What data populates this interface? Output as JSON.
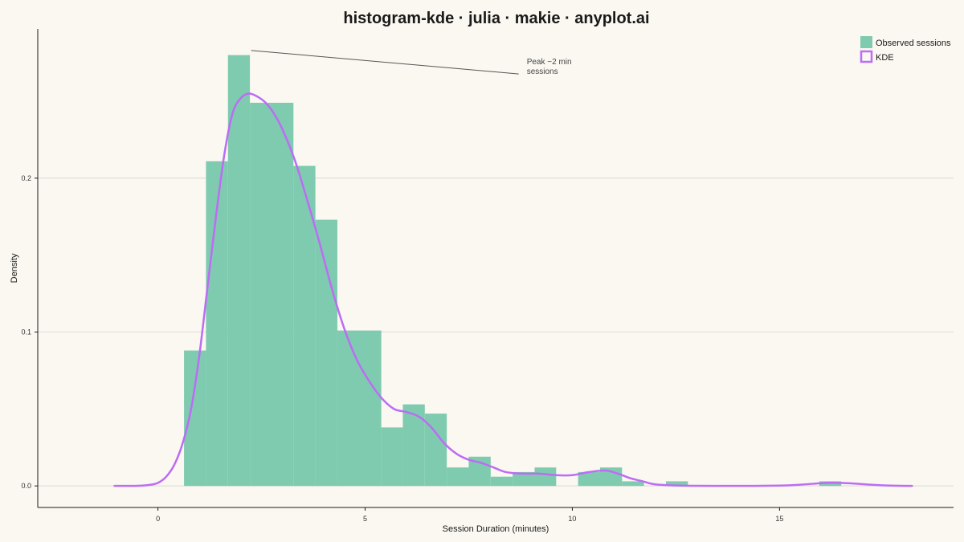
{
  "chart_data": {
    "type": "bar",
    "title": "histogram-kde · julia · makie · anyplot.ai",
    "xlabel": "Session Duration (minutes)",
    "ylabel": "Density",
    "xlim": [
      -2.9,
      19.2
    ],
    "ylim": [
      -0.014,
      0.297
    ],
    "x_ticks": [
      0,
      5,
      10,
      15
    ],
    "x_tick_labels": [
      "0",
      "5",
      "10",
      "15"
    ],
    "y_ticks": [
      0.0,
      0.1,
      0.2
    ],
    "y_tick_labels": [
      "0.0",
      "0.1",
      "0.2"
    ],
    "grid": "horizontal",
    "legend_position": "top-right",
    "series": [
      {
        "name": "Observed sessions",
        "kind": "histogram",
        "color": "#7FCBAF",
        "bins": [
          {
            "x0": 0.63,
            "x1": 1.16,
            "value": 0.088
          },
          {
            "x0": 1.16,
            "x1": 1.69,
            "value": 0.211
          },
          {
            "x0": 1.69,
            "x1": 2.22,
            "value": 0.28
          },
          {
            "x0": 2.22,
            "x1": 3.27,
            "value": 0.249
          },
          {
            "x0": 3.27,
            "x1": 3.8,
            "value": 0.208
          },
          {
            "x0": 3.8,
            "x1": 4.33,
            "value": 0.173
          },
          {
            "x0": 4.33,
            "x1": 5.39,
            "value": 0.101
          },
          {
            "x0": 5.39,
            "x1": 5.91,
            "value": 0.038
          },
          {
            "x0": 5.91,
            "x1": 6.44,
            "value": 0.053
          },
          {
            "x0": 6.44,
            "x1": 6.97,
            "value": 0.047
          },
          {
            "x0": 6.97,
            "x1": 7.5,
            "value": 0.012
          },
          {
            "x0": 7.5,
            "x1": 8.03,
            "value": 0.019
          },
          {
            "x0": 8.03,
            "x1": 8.56,
            "value": 0.006
          },
          {
            "x0": 8.56,
            "x1": 9.09,
            "value": 0.009
          },
          {
            "x0": 9.09,
            "x1": 9.61,
            "value": 0.012
          },
          {
            "x0": 10.14,
            "x1": 10.67,
            "value": 0.009
          },
          {
            "x0": 10.67,
            "x1": 11.2,
            "value": 0.012
          },
          {
            "x0": 11.2,
            "x1": 11.73,
            "value": 0.003
          },
          {
            "x0": 12.26,
            "x1": 12.79,
            "value": 0.003
          },
          {
            "x0": 15.96,
            "x1": 16.49,
            "value": 0.003
          }
        ]
      },
      {
        "name": "KDE",
        "kind": "line",
        "color": "#BD6CF5",
        "x": [
          -1.05,
          -0.5,
          -0.2,
          0.0,
          0.2,
          0.4,
          0.6,
          0.8,
          1.0,
          1.2,
          1.4,
          1.6,
          1.8,
          2.0,
          2.2,
          2.4,
          2.6,
          2.8,
          3.0,
          3.3,
          3.6,
          3.9,
          4.2,
          4.5,
          4.8,
          5.1,
          5.4,
          5.7,
          6.0,
          6.3,
          6.6,
          6.9,
          7.2,
          7.5,
          7.8,
          8.1,
          8.4,
          8.8,
          9.2,
          9.6,
          10.0,
          10.4,
          10.8,
          11.1,
          11.4,
          11.7,
          12.0,
          12.5,
          13.0,
          14.0,
          15.0,
          15.5,
          16.0,
          16.3,
          16.7,
          17.2,
          17.7,
          18.2
        ],
        "y": [
          0.0,
          0.0001,
          0.0007,
          0.002,
          0.006,
          0.014,
          0.028,
          0.05,
          0.085,
          0.13,
          0.175,
          0.215,
          0.242,
          0.252,
          0.255,
          0.253,
          0.249,
          0.242,
          0.232,
          0.212,
          0.186,
          0.158,
          0.128,
          0.102,
          0.082,
          0.068,
          0.057,
          0.05,
          0.048,
          0.045,
          0.038,
          0.028,
          0.021,
          0.017,
          0.015,
          0.012,
          0.009,
          0.008,
          0.008,
          0.007,
          0.007,
          0.009,
          0.01,
          0.008,
          0.005,
          0.003,
          0.001,
          0.0003,
          0.0001,
          0.0,
          0.0002,
          0.0008,
          0.0018,
          0.0021,
          0.0017,
          0.0008,
          0.0002,
          0.0
        ]
      }
    ],
    "annotation": {
      "lines": [
        "Peak ~2 min",
        "sessions"
      ],
      "point": [
        2.25,
        0.283
      ],
      "text_at": [
        8.9,
        0.274
      ]
    }
  }
}
